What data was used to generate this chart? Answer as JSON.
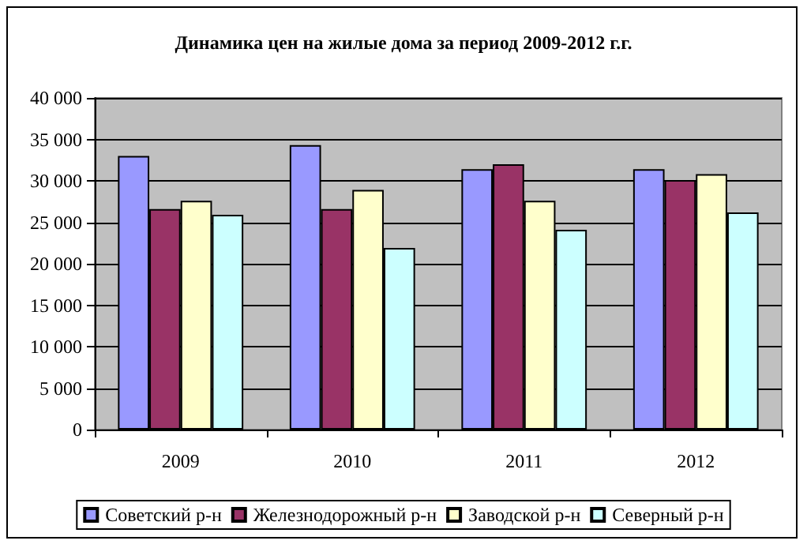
{
  "chart_data": {
    "type": "bar",
    "title": "Динамика цен на жилые дома за период 2009-2012 г.г.",
    "categories": [
      "2009",
      "2010",
      "2011",
      "2012"
    ],
    "series": [
      {
        "name": "Советский р-н",
        "color": "#9999ff",
        "values": [
          33000,
          34300,
          31400,
          31400
        ]
      },
      {
        "name": "Железнодорожный р-н",
        "color": "#993366",
        "values": [
          26600,
          26600,
          32000,
          30100
        ]
      },
      {
        "name": "Заводской р-н",
        "color": "#ffffcc",
        "values": [
          27600,
          28900,
          27600,
          30800
        ]
      },
      {
        "name": "Северный р-н",
        "color": "#ccffff",
        "values": [
          25900,
          21900,
          24100,
          26200
        ]
      }
    ],
    "ylim": [
      0,
      40000
    ],
    "yticks": [
      {
        "value": 0,
        "label": "0"
      },
      {
        "value": 5000,
        "label": "5 000"
      },
      {
        "value": 10000,
        "label": "10 000"
      },
      {
        "value": 15000,
        "label": "15 000"
      },
      {
        "value": 20000,
        "label": "20 000"
      },
      {
        "value": 25000,
        "label": "25 000"
      },
      {
        "value": 30000,
        "label": "30 000"
      },
      {
        "value": 35000,
        "label": "35 000"
      },
      {
        "value": 40000,
        "label": "40 000"
      }
    ],
    "grid": "y",
    "legend": "bottom"
  }
}
